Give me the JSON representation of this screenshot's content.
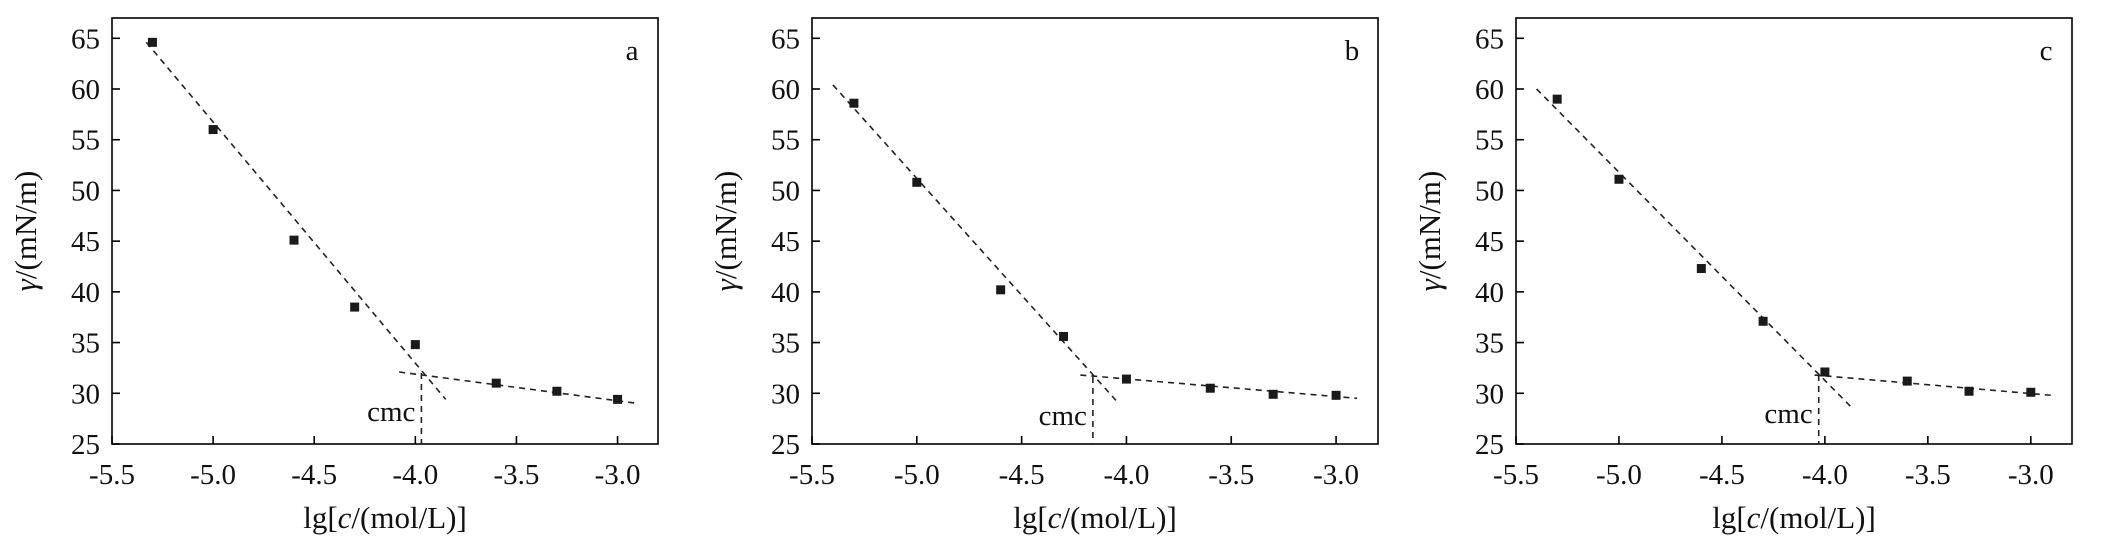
{
  "chart_data": [
    {
      "type": "scatter",
      "panel_label": "a",
      "xlabel": {
        "prefix": "lg[",
        "italic": "c",
        "suffix": "/(mol/L)]"
      },
      "ylabel": {
        "italic": "γ",
        "suffix": "/(mN/m)"
      },
      "xlim": [
        -5.5,
        -2.8
      ],
      "ylim": [
        25,
        67
      ],
      "xticks": [
        -5.5,
        -5.0,
        -4.5,
        -4.0,
        -3.5,
        -3.0
      ],
      "xtick_labels": [
        "-5.5",
        "-5.0",
        "-4.5",
        "-4.0",
        "-3.5",
        "-3.0"
      ],
      "yticks": [
        25,
        30,
        35,
        40,
        45,
        50,
        55,
        60,
        65
      ],
      "ytick_labels": [
        "25",
        "30",
        "35",
        "40",
        "45",
        "50",
        "55",
        "60",
        "65"
      ],
      "x": [
        -5.3,
        -5.0,
        -4.6,
        -4.3,
        -4.0,
        -3.6,
        -3.3,
        -3.0
      ],
      "y": [
        64.6,
        56.0,
        45.1,
        38.5,
        34.8,
        31.0,
        30.2,
        29.4
      ],
      "fit_lines": [
        {
          "x": [
            -5.33,
            -3.85
          ],
          "y": [
            64.6,
            29.4
          ]
        },
        {
          "x": [
            -4.08,
            -2.9
          ],
          "y": [
            32.1,
            29.0
          ]
        }
      ],
      "cmc": {
        "label": "cmc",
        "x": -3.97,
        "y": 32.0
      }
    },
    {
      "type": "scatter",
      "panel_label": "b",
      "xlabel": {
        "prefix": "lg[",
        "italic": "c",
        "suffix": "/(mol/L)]"
      },
      "ylabel": {
        "italic": "γ",
        "suffix": "/(mN/m)"
      },
      "xlim": [
        -5.5,
        -2.8
      ],
      "ylim": [
        25,
        67
      ],
      "xticks": [
        -5.5,
        -5.0,
        -4.5,
        -4.0,
        -3.5,
        -3.0
      ],
      "xtick_labels": [
        "-5.5",
        "-5.0",
        "-4.5",
        "-4.0",
        "-3.5",
        "-3.0"
      ],
      "yticks": [
        25,
        30,
        35,
        40,
        45,
        50,
        55,
        60,
        65
      ],
      "ytick_labels": [
        "25",
        "30",
        "35",
        "40",
        "45",
        "50",
        "55",
        "60",
        "65"
      ],
      "x": [
        -5.3,
        -5.0,
        -4.6,
        -4.3,
        -4.0,
        -3.6,
        -3.3,
        -3.0
      ],
      "y": [
        58.6,
        50.8,
        40.2,
        35.6,
        31.4,
        30.5,
        29.9,
        29.8
      ],
      "fit_lines": [
        {
          "x": [
            -5.4,
            -4.05
          ],
          "y": [
            60.4,
            29.3
          ]
        },
        {
          "x": [
            -4.22,
            -2.9
          ],
          "y": [
            31.8,
            29.5
          ]
        }
      ],
      "cmc": {
        "label": "cmc",
        "x": -4.16,
        "y": 31.6
      }
    },
    {
      "type": "scatter",
      "panel_label": "c",
      "xlabel": {
        "prefix": "lg[",
        "italic": "c",
        "suffix": "/(mol/L)]"
      },
      "ylabel": {
        "italic": "γ",
        "suffix": "/(mN/m)"
      },
      "xlim": [
        -5.5,
        -2.8
      ],
      "ylim": [
        25,
        67
      ],
      "xticks": [
        -5.5,
        -5.0,
        -4.5,
        -4.0,
        -3.5,
        -3.0
      ],
      "xtick_labels": [
        "-5.5",
        "-5.0",
        "-4.5",
        "-4.0",
        "-3.5",
        "-3.0"
      ],
      "yticks": [
        25,
        30,
        35,
        40,
        45,
        50,
        55,
        60,
        65
      ],
      "ytick_labels": [
        "25",
        "30",
        "35",
        "40",
        "45",
        "50",
        "55",
        "60",
        "65"
      ],
      "x": [
        -5.3,
        -5.0,
        -4.6,
        -4.3,
        -4.0,
        -3.6,
        -3.3,
        -3.0
      ],
      "y": [
        59.0,
        51.1,
        42.3,
        37.1,
        32.1,
        31.2,
        30.2,
        30.1
      ],
      "fit_lines": [
        {
          "x": [
            -5.4,
            -3.87
          ],
          "y": [
            60.0,
            28.6
          ]
        },
        {
          "x": [
            -4.05,
            -2.9
          ],
          "y": [
            31.8,
            29.8
          ]
        }
      ],
      "cmc": {
        "label": "cmc",
        "x": -4.03,
        "y": 31.8
      }
    }
  ]
}
